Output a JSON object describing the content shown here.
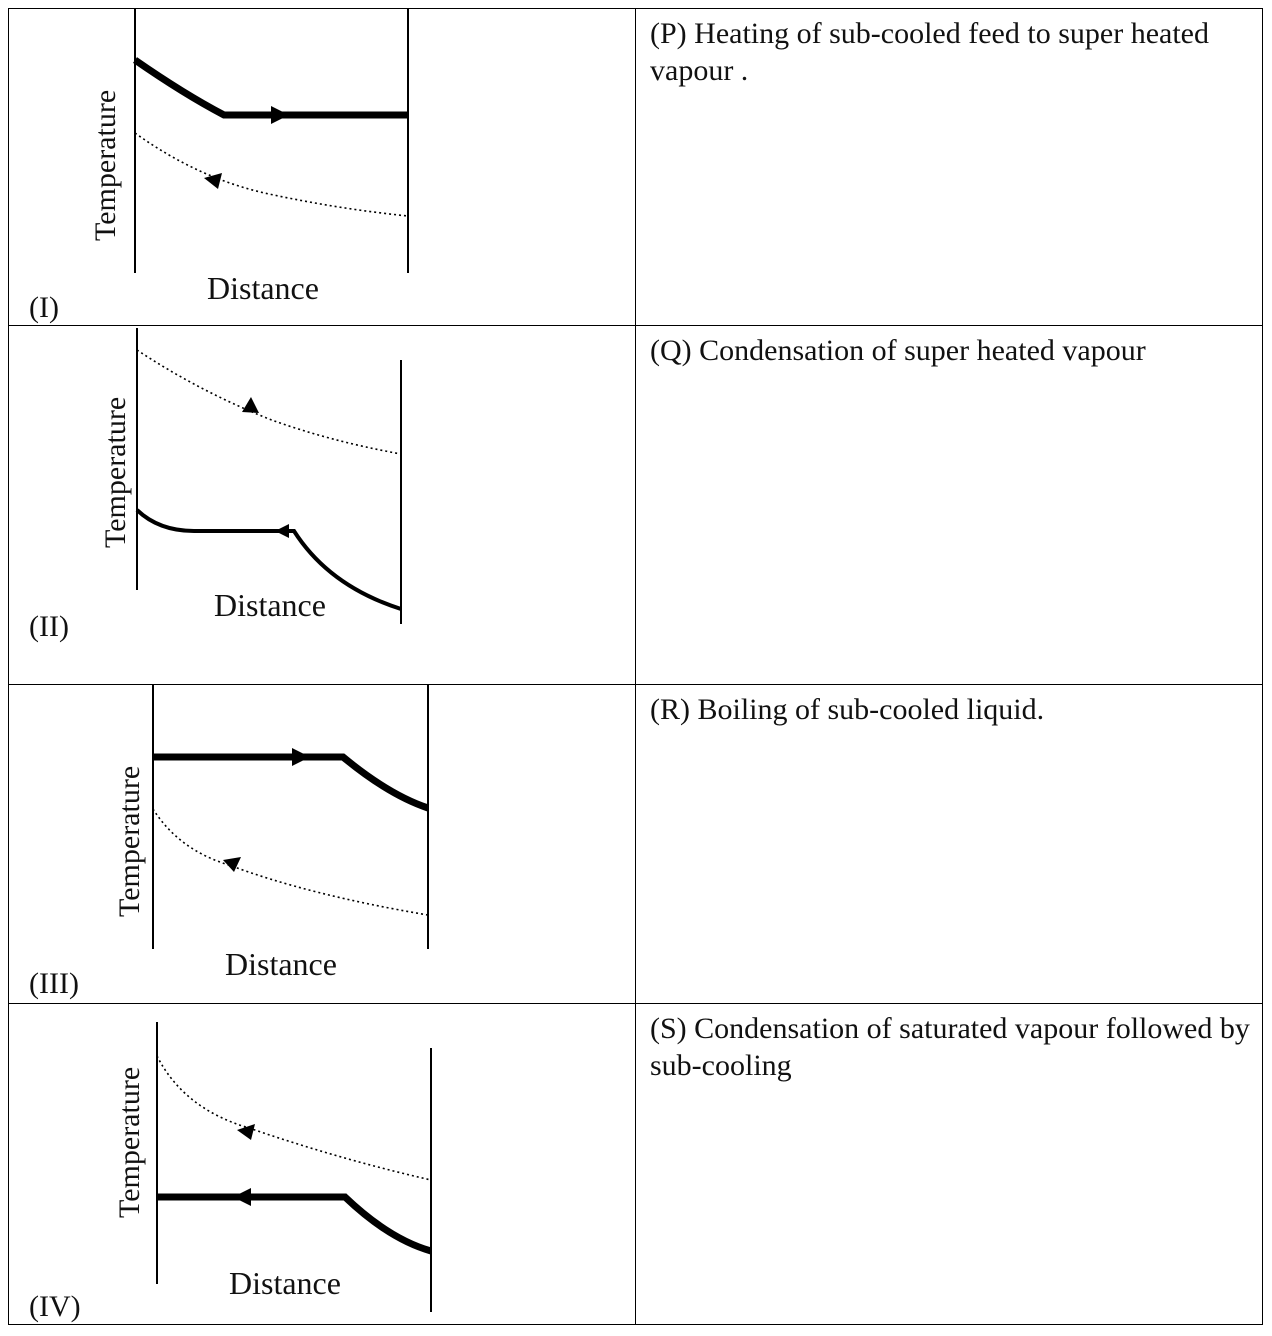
{
  "rows": [
    {
      "figure": {
        "number": "(I)",
        "x_label": "Distance",
        "y_label": "Temperature"
      },
      "description": "(P)  Heating of sub-cooled feed to super heated  vapour ."
    },
    {
      "figure": {
        "number": "(II)",
        "x_label": "Distance",
        "y_label": "Temperature"
      },
      "description": "(Q)  Condensation of super heated vapour"
    },
    {
      "figure": {
        "number": "(III)",
        "x_label": "Distance",
        "y_label": "Temperature"
      },
      "description": "(R)  Boiling of sub-cooled liquid."
    },
    {
      "figure": {
        "number": "(IV)",
        "x_label": "Distance",
        "y_label": "Temperature"
      },
      "description": "(S)  Condensation of saturated vapour followed by sub-cooling"
    }
  ]
}
